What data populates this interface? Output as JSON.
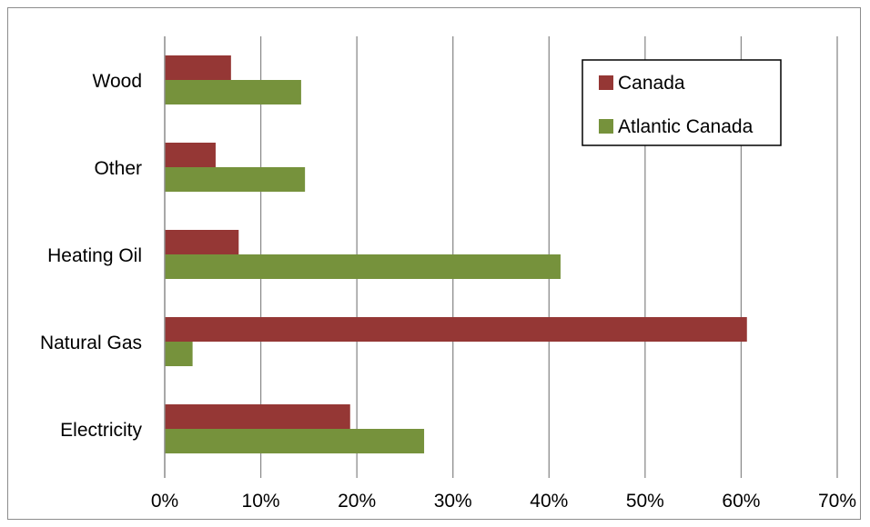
{
  "chart_data": {
    "type": "bar",
    "orientation": "horizontal",
    "categories": [
      "Electricity",
      "Natural Gas",
      "Heating Oil",
      "Other",
      "Wood"
    ],
    "series": [
      {
        "name": "Canada",
        "color": "#953735",
        "values": [
          19.3,
          60.6,
          7.7,
          5.3,
          6.9
        ]
      },
      {
        "name": "Atlantic Canada",
        "color": "#76923C",
        "values": [
          27.0,
          2.9,
          41.2,
          14.6,
          14.2
        ]
      }
    ],
    "x_ticks": [
      "0%",
      "10%",
      "20%",
      "30%",
      "40%",
      "50%",
      "60%",
      "70%"
    ],
    "xlim": [
      0,
      70
    ],
    "grid": true,
    "legend_position": "top-right"
  }
}
